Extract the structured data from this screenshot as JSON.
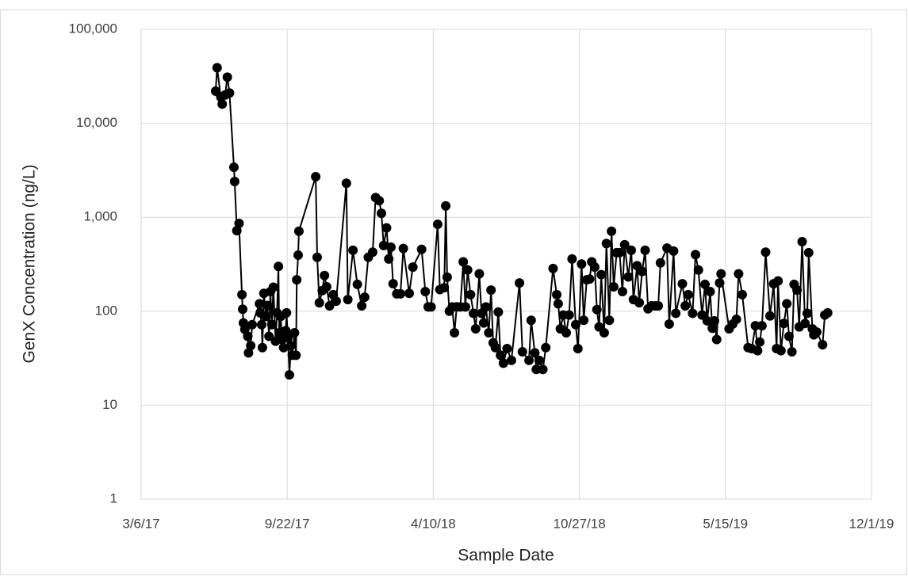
{
  "chart_data": {
    "type": "line",
    "x_label": "Sample Date",
    "y_label": "GenX Concentration  (ng/L)",
    "yscale": "log",
    "grid": true,
    "color": "#000000",
    "marker": "circle",
    "xlim": [
      "2017-03-06",
      "2019-12-01"
    ],
    "xticks": [
      {
        "value": "2017-03-06",
        "label": "3/6/17"
      },
      {
        "value": "2017-09-22",
        "label": "9/22/17"
      },
      {
        "value": "2018-04-10",
        "label": "4/10/18"
      },
      {
        "value": "2018-10-27",
        "label": "10/27/18"
      },
      {
        "value": "2019-05-15",
        "label": "5/15/19"
      },
      {
        "value": "2019-12-01",
        "label": "12/1/19"
      }
    ],
    "ylim": [
      1,
      100000
    ],
    "yticks": [
      1,
      10,
      100,
      {
        "value": 1000,
        "label": "1,000"
      },
      {
        "value": 10000,
        "label": "10,000"
      },
      {
        "value": 100000,
        "label": "100,000"
      }
    ],
    "x": [
      "2017-06-16",
      "2017-06-18",
      "2017-06-23",
      "2017-06-25",
      "2017-06-29",
      "2017-07-02",
      "2017-07-05",
      "2017-07-11",
      "2017-07-12",
      "2017-07-15",
      "2017-07-18",
      "2017-07-22",
      "2017-07-23",
      "2017-07-24",
      "2017-07-26",
      "2017-07-30",
      "2017-07-31",
      "2017-08-03",
      "2017-08-05",
      "2017-08-15",
      "2017-08-16",
      "2017-08-18",
      "2017-08-19",
      "2017-08-21",
      "2017-08-24",
      "2017-08-26",
      "2017-08-28",
      "2017-08-30",
      "2017-09-01",
      "2017-09-03",
      "2017-09-06",
      "2017-09-08",
      "2017-09-10",
      "2017-09-11",
      "2017-09-13",
      "2017-09-15",
      "2017-09-17",
      "2017-09-20",
      "2017-09-21",
      "2017-09-23",
      "2017-09-25",
      "2017-09-27",
      "2017-09-29",
      "2017-10-02",
      "2017-10-04",
      "2017-10-05",
      "2017-10-07",
      "2017-10-08",
      "2017-10-31",
      "2017-11-02",
      "2017-11-05",
      "2017-11-09",
      "2017-11-12",
      "2017-11-15",
      "2017-11-19",
      "2017-11-24",
      "2017-11-28",
      "2017-12-12",
      "2017-12-14",
      "2017-12-21",
      "2017-12-27",
      "2018-01-02",
      "2018-01-06",
      "2018-01-11",
      "2018-01-17",
      "2018-01-21",
      "2018-01-26",
      "2018-01-29",
      "2018-02-01",
      "2018-02-05",
      "2018-02-08",
      "2018-02-11",
      "2018-02-14",
      "2018-02-19",
      "2018-02-24",
      "2018-02-28",
      "2018-03-08",
      "2018-03-13",
      "2018-03-25",
      "2018-03-30",
      "2018-04-03",
      "2018-04-07",
      "2018-04-16",
      "2018-04-19",
      "2018-04-25",
      "2018-04-27",
      "2018-04-29",
      "2018-05-02",
      "2018-05-06",
      "2018-05-09",
      "2018-05-12",
      "2018-05-17",
      "2018-05-21",
      "2018-05-24",
      "2018-05-27",
      "2018-05-31",
      "2018-06-04",
      "2018-06-07",
      "2018-06-12",
      "2018-06-15",
      "2018-06-18",
      "2018-06-21",
      "2018-06-25",
      "2018-06-28",
      "2018-07-01",
      "2018-07-04",
      "2018-07-08",
      "2018-07-11",
      "2018-07-15",
      "2018-07-20",
      "2018-07-26",
      "2018-08-06",
      "2018-08-10",
      "2018-08-19",
      "2018-08-22",
      "2018-08-27",
      "2018-08-29",
      "2018-09-02",
      "2018-09-07",
      "2018-09-11",
      "2018-09-21",
      "2018-09-26",
      "2018-09-28",
      "2018-10-01",
      "2018-10-05",
      "2018-10-09",
      "2018-10-13",
      "2018-10-17",
      "2018-10-22",
      "2018-10-25",
      "2018-10-30",
      "2018-11-02",
      "2018-11-06",
      "2018-11-10",
      "2018-11-13",
      "2018-11-17",
      "2018-11-20",
      "2018-11-23",
      "2018-11-26",
      "2018-11-30",
      "2018-12-03",
      "2018-12-07",
      "2018-12-10",
      "2018-12-13",
      "2018-12-17",
      "2018-12-21",
      "2018-12-25",
      "2018-12-28",
      "2019-01-02",
      "2019-01-06",
      "2019-01-09",
      "2019-01-14",
      "2019-01-17",
      "2019-01-21",
      "2019-01-25",
      "2019-01-29",
      "2019-02-03",
      "2019-02-08",
      "2019-02-12",
      "2019-02-15",
      "2019-02-24",
      "2019-02-27",
      "2019-03-05",
      "2019-03-08",
      "2019-03-17",
      "2019-03-21",
      "2019-03-25",
      "2019-03-31",
      "2019-04-04",
      "2019-04-08",
      "2019-04-13",
      "2019-04-17",
      "2019-04-20",
      "2019-04-24",
      "2019-04-27",
      "2019-04-30",
      "2019-05-03",
      "2019-05-07",
      "2019-05-09",
      "2019-05-20",
      "2019-05-25",
      "2019-05-30",
      "2019-06-02",
      "2019-06-07",
      "2019-06-15",
      "2019-06-20",
      "2019-06-25",
      "2019-06-28",
      "2019-07-01",
      "2019-07-04",
      "2019-07-09",
      "2019-07-15",
      "2019-07-20",
      "2019-07-24",
      "2019-07-26",
      "2019-07-30",
      "2019-08-03",
      "2019-08-07",
      "2019-08-10",
      "2019-08-14",
      "2019-08-17",
      "2019-08-21",
      "2019-08-24",
      "2019-08-28",
      "2019-09-01",
      "2019-09-04",
      "2019-09-06",
      "2019-09-11",
      "2019-09-13",
      "2019-09-17",
      "2019-09-25",
      "2019-09-28",
      "2019-10-02"
    ],
    "values": [
      22000,
      39000,
      19000,
      16000,
      20000,
      31000,
      21000,
      3400,
      2400,
      720,
      860,
      150,
      105,
      75,
      64,
      54,
      36,
      43,
      72,
      120,
      96,
      72,
      41,
      155,
      88,
      115,
      54,
      162,
      72,
      180,
      48,
      96,
      300,
      59,
      88,
      50,
      41,
      62,
      96,
      52,
      21,
      43,
      34,
      59,
      34,
      216,
      395,
      710,
      2700,
      375,
      123,
      166,
      240,
      182,
      114,
      150,
      128,
      2300,
      133,
      445,
      193,
      114,
      141,
      375,
      425,
      1620,
      1500,
      1100,
      500,
      770,
      360,
      480,
      196,
      153,
      153,
      465,
      155,
      295,
      455,
      162,
      111,
      111,
      840,
      170,
      178,
      1320,
      230,
      100,
      111,
      59,
      111,
      111,
      335,
      111,
      275,
      150,
      95,
      65,
      250,
      95,
      75,
      111,
      59,
      168,
      46,
      41,
      98,
      34,
      28,
      40,
      30,
      200,
      37,
      30,
      80,
      36,
      24,
      30,
      24,
      41,
      285,
      150,
      120,
      65,
      91,
      59,
      91,
      360,
      72,
      40,
      318,
      80,
      216,
      220,
      335,
      295,
      104,
      68,
      245,
      59,
      525,
      80,
      710,
      182,
      420,
      420,
      162,
      510,
      232,
      445,
      133,
      305,
      123,
      265,
      445,
      106,
      114,
      114,
      114,
      327,
      470,
      73,
      437,
      95,
      196,
      114,
      150,
      95,
      400,
      275,
      91,
      193,
      79,
      162,
      66,
      79,
      50,
      200,
      250,
      65,
      73,
      82,
      250,
      150,
      41,
      40,
      70,
      38,
      47,
      70,
      425,
      89,
      196,
      40,
      210,
      38,
      74,
      120,
      54,
      37,
      193,
      168,
      68,
      550,
      74,
      95,
      420,
      65,
      56,
      60,
      44,
      91,
      96
    ]
  }
}
